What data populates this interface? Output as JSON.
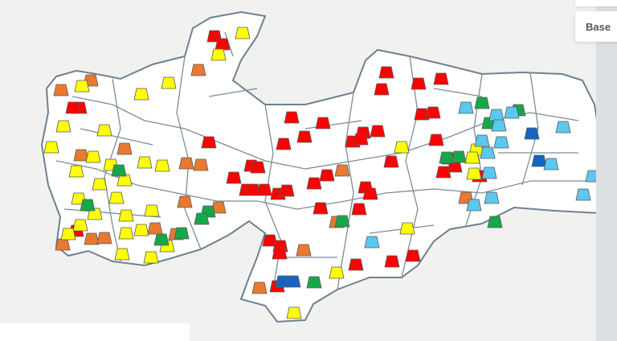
{
  "controls": {
    "base_label": "Base"
  },
  "map": {
    "boundary_color": "#7d8c99",
    "land_color": "#ffffff",
    "marker_shape": "trapezoid",
    "category_colors": {
      "red": "#ff0000",
      "orange": "#e8792f",
      "yellow": "#ffff00",
      "green": "#15a84a",
      "blue": "#1565c0",
      "lightblue": "#5bc8f0"
    }
  }
}
